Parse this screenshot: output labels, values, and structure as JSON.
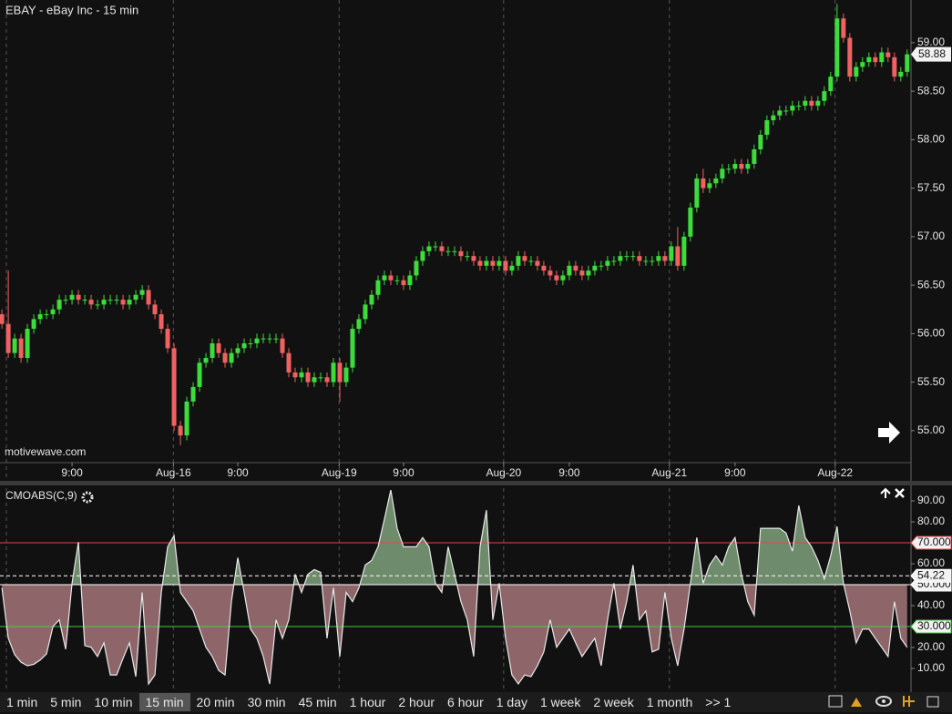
{
  "chart_data": [
    {
      "type": "candlestick",
      "title": "EBAY - eBay Inc - 15 min",
      "watermark": "motivewave.com",
      "up_color": "#3ddc3d",
      "down_color": "#f06262",
      "xlim": [
        -0.3,
        142.6
      ],
      "ylim": [
        54.67,
        59.44
      ],
      "yticks": [
        {
          "value": 55,
          "label": "55.00"
        },
        {
          "value": 55.5,
          "label": "55.50"
        },
        {
          "value": 56,
          "label": "56.00"
        },
        {
          "value": 56.5,
          "label": "56.50"
        },
        {
          "value": 57,
          "label": "57.00"
        },
        {
          "value": 57.5,
          "label": "57.50"
        },
        {
          "value": 58,
          "label": "58.00"
        },
        {
          "value": 58.5,
          "label": "58.50"
        },
        {
          "value": 59,
          "label": "59.00"
        }
      ],
      "xticks": [
        {
          "value": 11,
          "label": "9:00"
        },
        {
          "value": 26.9,
          "label": "Aug-16"
        },
        {
          "value": 37,
          "label": "9:00"
        },
        {
          "value": 52.9,
          "label": "Aug-19"
        },
        {
          "value": 63,
          "label": "9:00"
        },
        {
          "value": 78.7,
          "label": "Aug-20"
        },
        {
          "value": 89,
          "label": "9:00"
        },
        {
          "value": 104.7,
          "label": "Aug-21"
        },
        {
          "value": 115,
          "label": "9:00"
        },
        {
          "value": 130.7,
          "label": "Aug-22"
        }
      ],
      "day_breaks": [
        0.7,
        26.9,
        52.9,
        78.7,
        104.7,
        130.7
      ],
      "open": [
        56.2,
        56.1,
        55.8,
        55.95,
        55.75,
        56.05,
        56.15,
        56.2,
        56.2,
        56.25,
        56.35,
        56.35,
        56.4,
        56.35,
        56.35,
        56.3,
        56.3,
        56.35,
        56.35,
        56.35,
        56.3,
        56.35,
        56.4,
        56.45,
        56.3,
        56.2,
        56.05,
        55.85,
        55.05,
        54.95,
        55.3,
        55.45,
        55.7,
        55.75,
        55.9,
        55.8,
        55.7,
        55.8,
        55.85,
        55.9,
        55.9,
        55.95,
        55.95,
        55.95,
        55.95,
        55.8,
        55.6,
        55.55,
        55.6,
        55.5,
        55.55,
        55.55,
        55.5,
        55.7,
        55.5,
        55.65,
        56.05,
        56.15,
        56.3,
        56.4,
        56.55,
        56.6,
        56.55,
        56.55,
        56.5,
        56.6,
        56.75,
        56.85,
        56.9,
        56.9,
        56.85,
        56.85,
        56.85,
        56.8,
        56.8,
        56.75,
        56.7,
        56.75,
        56.7,
        56.75,
        56.65,
        56.7,
        56.8,
        56.75,
        56.75,
        56.7,
        56.65,
        56.6,
        56.55,
        56.6,
        56.7,
        56.65,
        56.6,
        56.65,
        56.7,
        56.7,
        56.75,
        56.75,
        56.8,
        56.8,
        56.8,
        56.75,
        56.75,
        56.75,
        56.8,
        56.75,
        56.9,
        56.7,
        57.0,
        57.3,
        57.6,
        57.5,
        57.55,
        57.6,
        57.7,
        57.7,
        57.75,
        57.7,
        57.75,
        57.9,
        58.05,
        58.2,
        58.25,
        58.3,
        58.3,
        58.35,
        58.35,
        58.4,
        58.35,
        58.4,
        58.5,
        58.65,
        59.25,
        59.05,
        58.65,
        58.75,
        58.8,
        58.85,
        58.8,
        58.9,
        58.85,
        58.65,
        58.7
      ],
      "high": [
        56.25,
        56.65,
        56.0,
        56.0,
        56.1,
        56.2,
        56.25,
        56.25,
        56.3,
        56.4,
        56.4,
        56.45,
        56.45,
        56.4,
        56.4,
        56.35,
        56.4,
        56.4,
        56.4,
        56.4,
        56.4,
        56.45,
        56.5,
        56.5,
        56.35,
        56.25,
        56.1,
        55.9,
        55.1,
        55.35,
        55.5,
        55.75,
        55.8,
        55.95,
        55.95,
        55.85,
        55.85,
        55.9,
        55.95,
        55.95,
        56.0,
        56.0,
        56.0,
        56.0,
        56.0,
        55.85,
        55.65,
        55.65,
        55.65,
        55.6,
        55.6,
        55.6,
        55.75,
        55.75,
        55.7,
        56.1,
        56.2,
        56.35,
        56.45,
        56.6,
        56.65,
        56.65,
        56.6,
        56.6,
        56.65,
        56.8,
        56.9,
        56.95,
        56.95,
        56.95,
        56.9,
        56.9,
        56.9,
        56.85,
        56.85,
        56.8,
        56.8,
        56.8,
        56.8,
        56.8,
        56.75,
        56.85,
        56.85,
        56.8,
        56.8,
        56.75,
        56.7,
        56.65,
        56.65,
        56.75,
        56.75,
        56.7,
        56.7,
        56.75,
        56.75,
        56.8,
        56.8,
        56.85,
        56.85,
        56.85,
        56.85,
        56.8,
        56.8,
        56.85,
        56.85,
        56.95,
        57.1,
        57.05,
        57.35,
        57.65,
        57.7,
        57.6,
        57.65,
        57.75,
        57.75,
        57.8,
        57.8,
        57.8,
        57.95,
        58.1,
        58.25,
        58.3,
        58.35,
        58.35,
        58.4,
        58.4,
        58.45,
        58.45,
        58.45,
        58.55,
        58.7,
        59.4,
        59.3,
        59.1,
        58.8,
        58.85,
        58.9,
        58.9,
        58.95,
        58.95,
        58.9,
        58.75,
        58.93
      ],
      "low": [
        56.05,
        55.75,
        55.75,
        55.7,
        55.7,
        56.0,
        56.1,
        56.15,
        56.15,
        56.2,
        56.3,
        56.3,
        56.3,
        56.3,
        56.25,
        56.25,
        56.25,
        56.3,
        56.3,
        56.25,
        56.25,
        56.3,
        56.35,
        56.25,
        56.15,
        56.0,
        55.8,
        55.0,
        54.85,
        54.9,
        55.25,
        55.4,
        55.65,
        55.7,
        55.75,
        55.65,
        55.65,
        55.75,
        55.8,
        55.85,
        55.85,
        55.9,
        55.9,
        55.9,
        55.75,
        55.55,
        55.5,
        55.5,
        55.45,
        55.45,
        55.5,
        55.45,
        55.45,
        55.3,
        55.45,
        55.6,
        56.0,
        56.1,
        56.25,
        56.35,
        56.5,
        56.5,
        56.5,
        56.45,
        56.45,
        56.55,
        56.7,
        56.8,
        56.85,
        56.8,
        56.8,
        56.8,
        56.75,
        56.75,
        56.7,
        56.65,
        56.65,
        56.65,
        56.65,
        56.6,
        56.6,
        56.65,
        56.7,
        56.7,
        56.65,
        56.6,
        56.55,
        56.5,
        56.5,
        56.55,
        56.6,
        56.55,
        56.55,
        56.6,
        56.65,
        56.65,
        56.7,
        56.7,
        56.75,
        56.75,
        56.7,
        56.7,
        56.7,
        56.7,
        56.7,
        56.7,
        56.65,
        56.65,
        56.95,
        57.25,
        57.45,
        57.45,
        57.5,
        57.55,
        57.65,
        57.65,
        57.65,
        57.65,
        57.7,
        57.85,
        58.0,
        58.15,
        58.2,
        58.25,
        58.25,
        58.3,
        58.3,
        58.3,
        58.3,
        58.35,
        58.45,
        58.6,
        59.0,
        58.6,
        58.6,
        58.7,
        58.75,
        58.75,
        58.75,
        58.8,
        58.6,
        58.6,
        58.65
      ],
      "close": [
        56.1,
        55.8,
        55.95,
        55.75,
        56.05,
        56.15,
        56.2,
        56.2,
        56.25,
        56.35,
        56.35,
        56.4,
        56.35,
        56.35,
        56.3,
        56.3,
        56.35,
        56.35,
        56.35,
        56.3,
        56.35,
        56.4,
        56.45,
        56.3,
        56.2,
        56.05,
        55.85,
        55.05,
        54.95,
        55.3,
        55.45,
        55.7,
        55.75,
        55.9,
        55.8,
        55.7,
        55.8,
        55.85,
        55.9,
        55.9,
        55.95,
        55.95,
        55.95,
        55.95,
        55.8,
        55.6,
        55.55,
        55.6,
        55.5,
        55.55,
        55.55,
        55.5,
        55.7,
        55.5,
        55.65,
        56.05,
        56.15,
        56.3,
        56.4,
        56.55,
        56.6,
        56.55,
        56.55,
        56.5,
        56.6,
        56.75,
        56.85,
        56.9,
        56.9,
        56.85,
        56.85,
        56.85,
        56.8,
        56.8,
        56.75,
        56.7,
        56.75,
        56.7,
        56.75,
        56.65,
        56.7,
        56.8,
        56.75,
        56.75,
        56.7,
        56.65,
        56.6,
        56.55,
        56.6,
        56.7,
        56.65,
        56.6,
        56.65,
        56.7,
        56.7,
        56.75,
        56.75,
        56.8,
        56.8,
        56.8,
        56.75,
        56.75,
        56.75,
        56.8,
        56.75,
        56.9,
        56.7,
        57.0,
        57.3,
        57.6,
        57.5,
        57.55,
        57.6,
        57.7,
        57.7,
        57.75,
        57.7,
        57.75,
        57.9,
        58.05,
        58.2,
        58.25,
        58.3,
        58.3,
        58.35,
        58.35,
        58.4,
        58.35,
        58.4,
        58.5,
        58.65,
        59.25,
        59.05,
        58.65,
        58.75,
        58.8,
        58.85,
        58.8,
        58.9,
        58.85,
        58.65,
        58.7,
        58.88
      ]
    },
    {
      "type": "area",
      "title": "CMOABS(C,9)",
      "line_color": "#e8e8e8",
      "fill_above": "#6e8c6c",
      "fill_below": "#8e666a",
      "fill_base": 50,
      "xlim": [
        -0.3,
        142.6
      ],
      "ylim": [
        0,
        97.4
      ],
      "yticks": [
        {
          "value": 10,
          "label": "10.00"
        },
        {
          "value": 20,
          "label": "20.00"
        },
        {
          "value": 30,
          "label": "30.00"
        },
        {
          "value": 40,
          "label": "40.00"
        },
        {
          "value": 50,
          "label": "50.00"
        },
        {
          "value": 60,
          "label": "60.00"
        },
        {
          "value": 70,
          "label": "70.00"
        },
        {
          "value": 80,
          "label": "80.00"
        },
        {
          "value": 90,
          "label": "90.00"
        }
      ],
      "levels": [
        {
          "value": 70,
          "label": "70.000",
          "color": "#e04848"
        },
        {
          "value": 50,
          "label": "50.000",
          "color": "#ffffff"
        },
        {
          "value": 30,
          "label": "30.000",
          "color": "#48c848"
        }
      ],
      "average": {
        "value": 54.22,
        "label": "54.22",
        "color": "#ffffff"
      },
      "values": [
        48.5,
        24.4,
        16.6,
        13,
        11.3,
        12,
        14,
        17,
        30,
        33.2,
        19.2,
        50.7,
        70.3,
        20.9,
        20.1,
        15.7,
        22.2,
        6.9,
        6.9,
        14.8,
        22.2,
        6.1,
        46.3,
        2.6,
        6.9,
        46.3,
        68.1,
        73.4,
        46.3,
        41.9,
        37.5,
        28.8,
        20.1,
        15.7,
        9.1,
        6.9,
        41.9,
        62.9,
        46.3,
        28.8,
        24.4,
        15.7,
        2.6,
        33.2,
        24.4,
        33.2,
        55,
        46.3,
        55,
        57.2,
        55.9,
        24.4,
        48.5,
        15.7,
        46.3,
        41.9,
        48.5,
        59.4,
        61.6,
        68.1,
        81.3,
        95.2,
        76.9,
        68.1,
        68.1,
        68.1,
        72.5,
        68.1,
        50.7,
        46.3,
        68.1,
        55,
        41.9,
        33.2,
        15.7,
        68.1,
        85.6,
        33.2,
        50.7,
        24.4,
        6.9,
        2.6,
        6.9,
        6.1,
        11.3,
        17.9,
        33.2,
        20.1,
        24.4,
        28.8,
        22.2,
        15.7,
        20.1,
        24.4,
        11.3,
        33.2,
        50.7,
        28.8,
        41.9,
        59.4,
        33.2,
        37.5,
        17.9,
        19.2,
        46.3,
        24.4,
        11.3,
        28.8,
        50.7,
        72.5,
        50.7,
        59.4,
        63.8,
        59.4,
        68.1,
        72.5,
        55,
        41.9,
        35.4,
        76.9,
        76.9,
        76.9,
        76.9,
        74.7,
        66,
        87.8,
        72.5,
        68.1,
        61.6,
        52.8,
        63.8,
        77.8,
        50.7,
        37.5,
        22.2,
        28.8,
        28.8,
        24.4,
        20.1,
        15.7,
        41.9,
        24.4,
        20.1
      ]
    }
  ],
  "toolbar": {
    "timeframes": [
      "1 min",
      "5 min",
      "10 min",
      "15 min",
      "20 min",
      "30 min",
      "45 min",
      "1 hour",
      "2 hour",
      "6 hour",
      "1 day",
      "1 week",
      "2 week",
      "1 month"
    ],
    "selected": 3,
    "more": ">> 1"
  }
}
